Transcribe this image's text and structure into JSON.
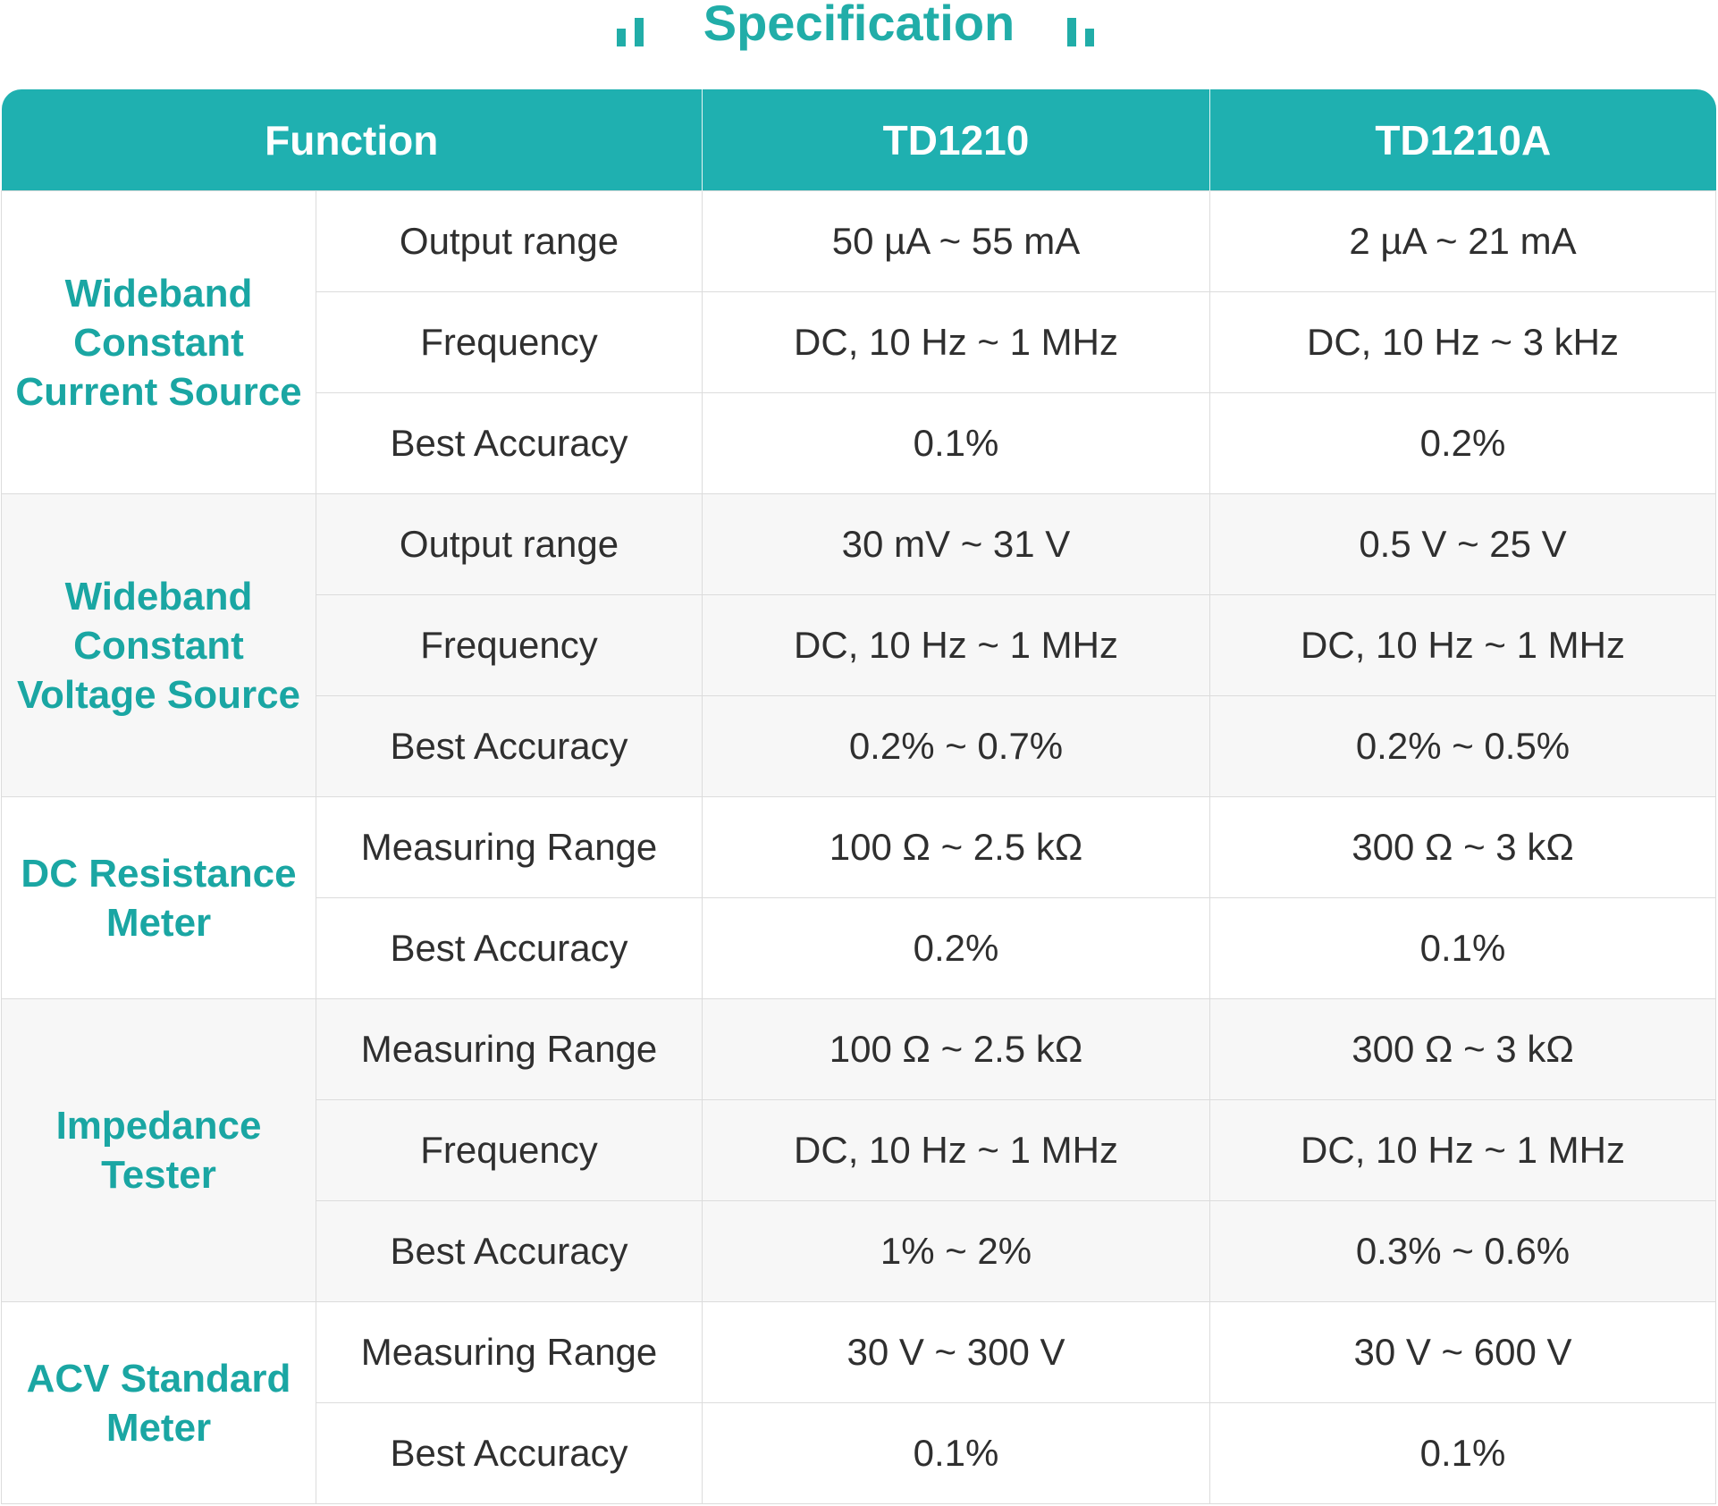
{
  "title": "Specification",
  "colors": {
    "accent": "#21ada8",
    "header_bg": "#1fb0b0",
    "row_shade": "#f7f7f7"
  },
  "table": {
    "headers": [
      "Function",
      "TD1210",
      "TD1210A"
    ],
    "groups": [
      {
        "name": "Wideband Constant Current Source",
        "rows": [
          {
            "param": "Output range",
            "td1210": "50 µA ~ 55 mA",
            "td1210a": "2 µA ~ 21 mA"
          },
          {
            "param": "Frequency",
            "td1210": "DC, 10 Hz ~ 1 MHz",
            "td1210a": "DC, 10 Hz ~ 3 kHz"
          },
          {
            "param": "Best Accuracy",
            "td1210": "0.1%",
            "td1210a": "0.2%"
          }
        ]
      },
      {
        "name": "Wideband Constant Voltage Source",
        "rows": [
          {
            "param": "Output range",
            "td1210": "30 mV ~ 31 V",
            "td1210a": "0.5 V ~ 25 V"
          },
          {
            "param": "Frequency",
            "td1210": "DC, 10 Hz ~ 1 MHz",
            "td1210a": "DC, 10 Hz ~ 1 MHz"
          },
          {
            "param": "Best Accuracy",
            "td1210": "0.2% ~ 0.7%",
            "td1210a": "0.2% ~ 0.5%"
          }
        ]
      },
      {
        "name": "DC Resistance Meter",
        "rows": [
          {
            "param": "Measuring Range",
            "td1210": "100 Ω ~ 2.5 kΩ",
            "td1210a": "300 Ω ~ 3 kΩ"
          },
          {
            "param": "Best Accuracy",
            "td1210": "0.2%",
            "td1210a": "0.1%"
          }
        ]
      },
      {
        "name": "Impedance Tester",
        "rows": [
          {
            "param": "Measuring Range",
            "td1210": "100 Ω ~ 2.5 kΩ",
            "td1210a": "300 Ω ~ 3 kΩ"
          },
          {
            "param": "Frequency",
            "td1210": "DC, 10 Hz ~ 1 MHz",
            "td1210a": "DC, 10 Hz ~ 1 MHz"
          },
          {
            "param": "Best Accuracy",
            "td1210": "1% ~ 2%",
            "td1210a": "0.3% ~ 0.6%"
          }
        ]
      },
      {
        "name": "ACV Standard Meter",
        "rows": [
          {
            "param": "Measuring Range",
            "td1210": "30 V ~ 300 V",
            "td1210a": "30 V ~ 600 V"
          },
          {
            "param": "Best Accuracy",
            "td1210": "0.1%",
            "td1210a": "0.1%"
          }
        ]
      }
    ]
  }
}
